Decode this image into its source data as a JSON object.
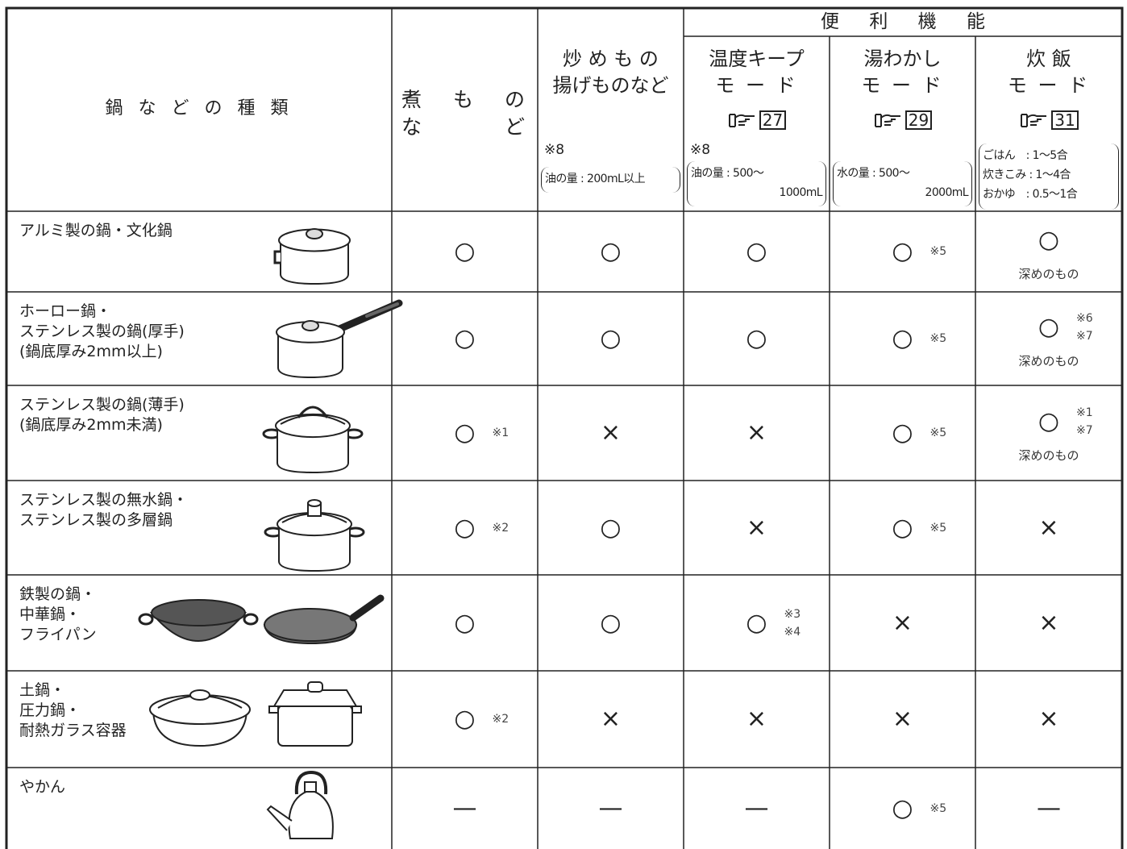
{
  "header": {
    "title": "鍋 な ど の 種 類",
    "group": "便 利 機 能",
    "columns": [
      {
        "lines": [
          "煮 も の",
          "な ど"
        ]
      },
      {
        "lines": [
          "炒 め も の",
          "揚げものなど"
        ],
        "note": "※8",
        "condition": [
          "油の量 : 200mL以上"
        ]
      },
      {
        "lines": [
          "温度キープ",
          "モ ー ド"
        ],
        "ref": "27",
        "note": "※8",
        "condition": [
          "油の量 : 500～",
          "1000mL"
        ]
      },
      {
        "lines": [
          "湯わかし",
          "モ ー ド"
        ],
        "ref": "29",
        "condition": [
          "水の量 : 500～",
          "2000mL"
        ]
      },
      {
        "lines": [
          "炊 飯",
          "モ ー ド"
        ],
        "ref": "31",
        "condition": [
          "ごはん　: 1～5合",
          "炊きこみ : 1～4合",
          "おかゆ　: 0.5～1合"
        ]
      }
    ]
  },
  "rows": [
    {
      "name": [
        "アルミ製の鍋・文化鍋"
      ],
      "cells": [
        {
          "mark": "○"
        },
        {
          "mark": "○"
        },
        {
          "mark": "○"
        },
        {
          "mark": "○",
          "notes": [
            "※5"
          ]
        },
        {
          "mark": "○",
          "sub": "深めのもの"
        }
      ]
    },
    {
      "name": [
        "ホーロー鍋・",
        "ステンレス製の鍋(厚手)",
        "(鍋底厚み2mm以上)"
      ],
      "cells": [
        {
          "mark": "○"
        },
        {
          "mark": "○"
        },
        {
          "mark": "○"
        },
        {
          "mark": "○",
          "notes": [
            "※5"
          ]
        },
        {
          "mark": "○",
          "notes": [
            "※6",
            "※7"
          ],
          "sub": "深めのもの"
        }
      ]
    },
    {
      "name": [
        "ステンレス製の鍋(薄手)",
        "(鍋底厚み2mm未満)"
      ],
      "cells": [
        {
          "mark": "○",
          "notes": [
            "※1"
          ]
        },
        {
          "mark": "×"
        },
        {
          "mark": "×"
        },
        {
          "mark": "○",
          "notes": [
            "※5"
          ]
        },
        {
          "mark": "○",
          "notes": [
            "※1",
            "※7"
          ],
          "sub": "深めのもの"
        }
      ]
    },
    {
      "name": [
        "ステンレス製の無水鍋・",
        "ステンレス製の多層鍋"
      ],
      "cells": [
        {
          "mark": "○",
          "notes": [
            "※2"
          ]
        },
        {
          "mark": "○"
        },
        {
          "mark": "×"
        },
        {
          "mark": "○",
          "notes": [
            "※5"
          ]
        },
        {
          "mark": "×"
        }
      ]
    },
    {
      "name": [
        "鉄製の鍋・",
        "中華鍋・",
        "フライパン"
      ],
      "cells": [
        {
          "mark": "○"
        },
        {
          "mark": "○"
        },
        {
          "mark": "○",
          "notes": [
            "※3",
            "※4"
          ]
        },
        {
          "mark": "×"
        },
        {
          "mark": "×"
        }
      ]
    },
    {
      "name": [
        "土鍋・",
        "圧力鍋・",
        "耐熱ガラス容器"
      ],
      "cells": [
        {
          "mark": "○",
          "notes": [
            "※2"
          ]
        },
        {
          "mark": "×"
        },
        {
          "mark": "×"
        },
        {
          "mark": "×"
        },
        {
          "mark": "×"
        }
      ]
    },
    {
      "name": [
        "やかん"
      ],
      "cells": [
        {
          "mark": "—"
        },
        {
          "mark": "—"
        },
        {
          "mark": "—"
        },
        {
          "mark": "○",
          "notes": [
            "※5"
          ]
        },
        {
          "mark": "—"
        }
      ]
    }
  ]
}
